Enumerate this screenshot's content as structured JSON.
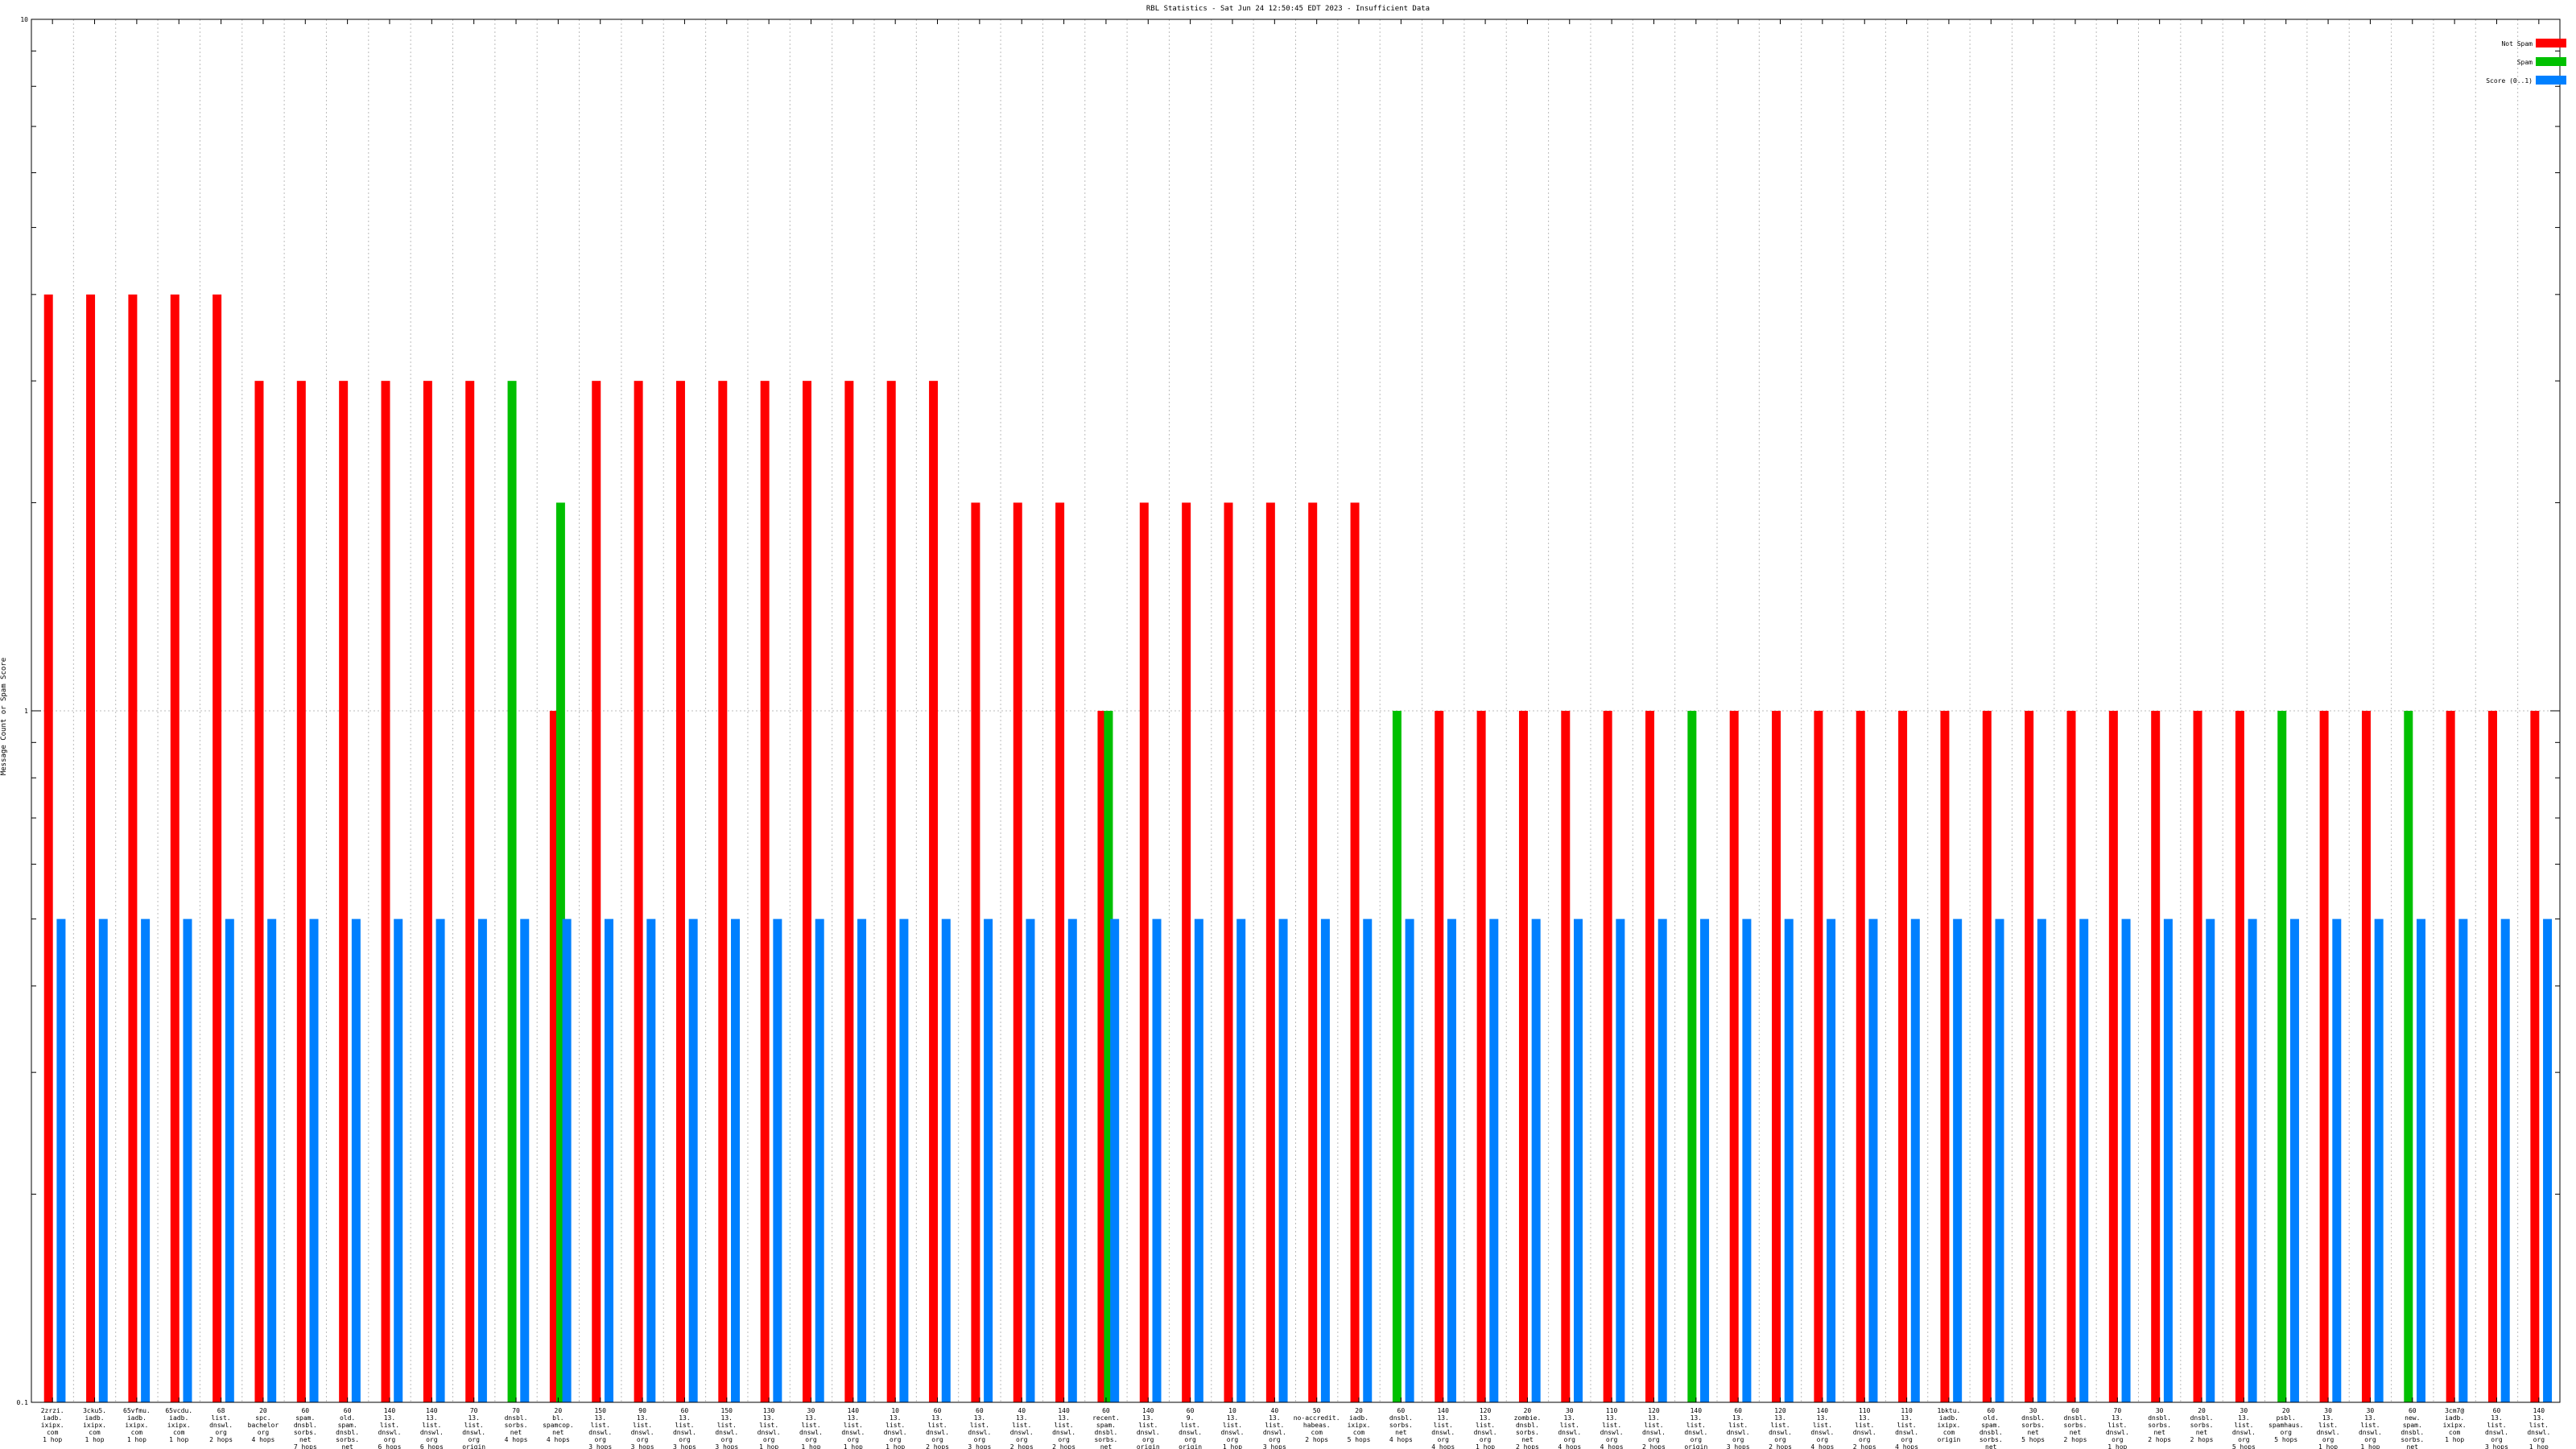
{
  "chart_data": {
    "type": "bar",
    "title": "RBL Statistics - Sat Jun 24 12:50:45 EDT 2023 - Insufficient Data",
    "ylabel": "Message Count or Spam Score",
    "xlabel": "",
    "y_scale": "log",
    "ylim": [
      0.1,
      10
    ],
    "y_ticks": [
      0.1,
      1,
      10
    ],
    "y_tick_labels": [
      "0.1",
      "1",
      "10"
    ],
    "grid": true,
    "legend_position": "top-right",
    "series": [
      {
        "name": "Not Spam",
        "color": "#ff0000"
      },
      {
        "name": "Spam",
        "color": "#00c000"
      },
      {
        "name": "Score (0..1)",
        "color": "#0080ff"
      }
    ],
    "categories": [
      [
        "2zrzi.",
        "iadb.",
        "ixipx.",
        "com",
        "1 hop"
      ],
      [
        "3cku5.",
        "iadb.",
        "ixipx.",
        "com",
        "1 hop"
      ],
      [
        "65vfmu.",
        "iadb.",
        "ixipx.",
        "com",
        "1 hop"
      ],
      [
        "65vcdu.",
        "iadb.",
        "ixipx.",
        "com",
        "1 hop"
      ],
      [
        "68",
        "list.",
        "dnswl.",
        "org",
        "2 hops"
      ],
      [
        "20",
        "spc.",
        "bachelor",
        "org",
        "4 hops"
      ],
      [
        "60",
        "spam.",
        "dnsbl.",
        "sorbs.",
        "net",
        "7 hops"
      ],
      [
        "60",
        "old.",
        "spam.",
        "dnsbl.",
        "sorbs.",
        "net",
        "7 hops"
      ],
      [
        "140",
        "13.",
        "list.",
        "dnswl.",
        "org",
        "6 hops"
      ],
      [
        "140",
        "13.",
        "list.",
        "dnswl.",
        "org",
        "6 hops"
      ],
      [
        "70",
        "13.",
        "list.",
        "dnswl.",
        "org",
        "origin"
      ],
      [
        "70",
        "dnsbl.",
        "sorbs.",
        "net",
        "4 hops"
      ],
      [
        "20",
        "bl.",
        "spamcop.",
        "net",
        "4 hops"
      ],
      [
        "150",
        "13.",
        "list.",
        "dnswl.",
        "org",
        "3 hops"
      ],
      [
        "90",
        "13.",
        "list.",
        "dnswl.",
        "org",
        "3 hops"
      ],
      [
        "60",
        "13.",
        "list.",
        "dnswl.",
        "org",
        "3 hops"
      ],
      [
        "150",
        "13.",
        "list.",
        "dnswl.",
        "org",
        "3 hops"
      ],
      [
        "130",
        "13.",
        "list.",
        "dnswl.",
        "org",
        "1 hop"
      ],
      [
        "30",
        "13.",
        "list.",
        "dnswl.",
        "org",
        "1 hop"
      ],
      [
        "140",
        "13.",
        "list.",
        "dnswl.",
        "org",
        "1 hop"
      ],
      [
        "10",
        "13.",
        "list.",
        "dnswl.",
        "org",
        "1 hop"
      ],
      [
        "60",
        "13.",
        "list.",
        "dnswl.",
        "org",
        "2 hops"
      ],
      [
        "60",
        "13.",
        "list.",
        "dnswl.",
        "org",
        "3 hops"
      ],
      [
        "40",
        "13.",
        "list.",
        "dnswl.",
        "org",
        "2 hops"
      ],
      [
        "140",
        "13.",
        "list.",
        "dnswl.",
        "org",
        "2 hops"
      ],
      [
        "60",
        "recent.",
        "spam.",
        "dnsbl.",
        "sorbs.",
        "net",
        "4 hops"
      ],
      [
        "140",
        "13.",
        "list.",
        "dnswl.",
        "org",
        "origin"
      ],
      [
        "60",
        "9.",
        "list.",
        "dnswl.",
        "org",
        "origin"
      ],
      [
        "10",
        "13.",
        "list.",
        "dnswl.",
        "org",
        "1 hop"
      ],
      [
        "40",
        "13.",
        "list.",
        "dnswl.",
        "org",
        "3 hops"
      ],
      [
        "50",
        "no-accredit.",
        "habeas.",
        "com",
        "2 hops"
      ],
      [
        "20",
        "iadb.",
        "ixipx.",
        "com",
        "5 hops"
      ],
      [
        "60",
        "dnsbl.",
        "sorbs.",
        "net",
        "4 hops"
      ],
      [
        "140",
        "13.",
        "list.",
        "dnswl.",
        "org",
        "4 hops"
      ],
      [
        "120",
        "13.",
        "list.",
        "dnswl.",
        "org",
        "1 hop"
      ],
      [
        "20",
        "zombie.",
        "dnsbl.",
        "sorbs.",
        "net",
        "2 hops"
      ],
      [
        "30",
        "13.",
        "list.",
        "dnswl.",
        "org",
        "4 hops"
      ],
      [
        "110",
        "13.",
        "list.",
        "dnswl.",
        "org",
        "4 hops"
      ],
      [
        "120",
        "13.",
        "list.",
        "dnswl.",
        "org",
        "2 hops"
      ],
      [
        "140",
        "13.",
        "list.",
        "dnswl.",
        "org",
        "origin"
      ],
      [
        "60",
        "13.",
        "list.",
        "dnswl.",
        "org",
        "3 hops"
      ],
      [
        "120",
        "13.",
        "list.",
        "dnswl.",
        "org",
        "2 hops"
      ],
      [
        "140",
        "13.",
        "list.",
        "dnswl.",
        "org",
        "4 hops"
      ],
      [
        "110",
        "13.",
        "list.",
        "dnswl.",
        "org",
        "2 hops"
      ],
      [
        "110",
        "13.",
        "list.",
        "dnswl.",
        "org",
        "4 hops"
      ],
      [
        "1bktu.",
        "iadb.",
        "ixipx.",
        "com",
        "origin"
      ],
      [
        "60",
        "old.",
        "spam.",
        "dnsbl.",
        "sorbs.",
        "net",
        "6 hops"
      ],
      [
        "30",
        "dnsbl.",
        "sorbs.",
        "net",
        "5 hops"
      ],
      [
        "60",
        "dnsbl.",
        "sorbs.",
        "net",
        "2 hops"
      ],
      [
        "70",
        "13.",
        "list.",
        "dnswl.",
        "org",
        "1 hop"
      ],
      [
        "30",
        "dnsbl.",
        "sorbs.",
        "net",
        "2 hops"
      ],
      [
        "20",
        "dnsbl.",
        "sorbs.",
        "net",
        "2 hops"
      ],
      [
        "30",
        "13.",
        "list.",
        "dnswl.",
        "org",
        "5 hops"
      ],
      [
        "20",
        "psbl.",
        "spamhaus.",
        "org",
        "5 hops"
      ],
      [
        "30",
        "13.",
        "list.",
        "dnswl.",
        "org",
        "1 hop"
      ],
      [
        "30",
        "13.",
        "list.",
        "dnswl.",
        "org",
        "1 hop"
      ],
      [
        "60",
        "new.",
        "spam.",
        "dnsbl.",
        "sorbs.",
        "net",
        "4 hops"
      ],
      [
        "3cm7@",
        "iadb.",
        "ixipx.",
        "com",
        "1 hop"
      ],
      [
        "60",
        "13.",
        "list.",
        "dnswl.",
        "org",
        "3 hops"
      ],
      [
        "140",
        "13.",
        "list.",
        "dnswl.",
        "org",
        "1 hop"
      ]
    ],
    "values": {
      "Not Spam": [
        4,
        4,
        4,
        4,
        4,
        3,
        3,
        3,
        3,
        3,
        3,
        0,
        1,
        3,
        3,
        3,
        3,
        3,
        3,
        3,
        3,
        3,
        2,
        2,
        2,
        1,
        2,
        2,
        2,
        2,
        2,
        2,
        0,
        1,
        1,
        1,
        1,
        1,
        1,
        0,
        1,
        1,
        1,
        1,
        1,
        1,
        1,
        1,
        1,
        1,
        1,
        1,
        1,
        0,
        1,
        1,
        0,
        1,
        1,
        1
      ],
      "Spam": [
        0,
        0,
        0,
        0,
        0,
        0,
        0,
        0,
        0,
        0,
        0,
        3,
        2,
        0,
        0,
        0,
        0,
        0,
        0,
        0,
        0,
        0,
        0,
        0,
        0,
        1,
        0,
        0,
        0,
        0,
        0,
        0,
        1,
        0,
        0,
        0,
        0,
        0,
        0,
        1,
        0,
        0,
        0,
        0,
        0,
        0,
        0,
        0,
        0,
        0,
        0,
        0,
        0,
        1,
        0,
        0,
        1,
        0,
        0,
        0
      ],
      "Score (0..1)": [
        0.5,
        0.5,
        0.5,
        0.5,
        0.5,
        0.5,
        0.5,
        0.5,
        0.5,
        0.5,
        0.5,
        0.5,
        0.5,
        0.5,
        0.5,
        0.5,
        0.5,
        0.5,
        0.5,
        0.5,
        0.5,
        0.5,
        0.5,
        0.5,
        0.5,
        0.5,
        0.5,
        0.5,
        0.5,
        0.5,
        0.5,
        0.5,
        0.5,
        0.5,
        0.5,
        0.5,
        0.5,
        0.5,
        0.5,
        0.5,
        0.5,
        0.5,
        0.5,
        0.5,
        0.5,
        0.5,
        0.5,
        0.5,
        0.5,
        0.5,
        0.5,
        0.5,
        0.5,
        0.5,
        0.5,
        0.5,
        0.5,
        0.5,
        0.5,
        0.5
      ]
    }
  }
}
